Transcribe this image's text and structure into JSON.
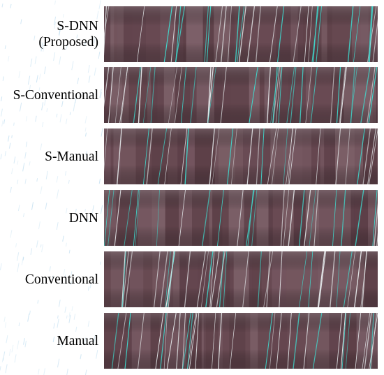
{
  "figure": {
    "rows": [
      {
        "id": "s-dnn",
        "label_lines": [
          "S-DNN",
          "(Proposed)"
        ],
        "seed": 11
      },
      {
        "id": "s-conventional",
        "label_lines": [
          "S-Conventional"
        ],
        "seed": 23
      },
      {
        "id": "s-manual",
        "label_lines": [
          "S-Manual"
        ],
        "seed": 37
      },
      {
        "id": "dnn",
        "label_lines": [
          "DNN"
        ],
        "seed": 41
      },
      {
        "id": "conventional",
        "label_lines": [
          "Conventional"
        ],
        "seed": 53
      },
      {
        "id": "manual",
        "label_lines": [
          "Manual"
        ],
        "seed": 67
      }
    ],
    "colors": {
      "page_background": "#ffffff",
      "panel_base": "#6e4f58",
      "panel_dark_band": "#4c3038",
      "panel_light_band": "#8a7178",
      "annotation_line_cyan": "#3ee0d4",
      "annotation_line_white": "#e9eef0",
      "background_streaks": "#5aa8d8"
    }
  }
}
